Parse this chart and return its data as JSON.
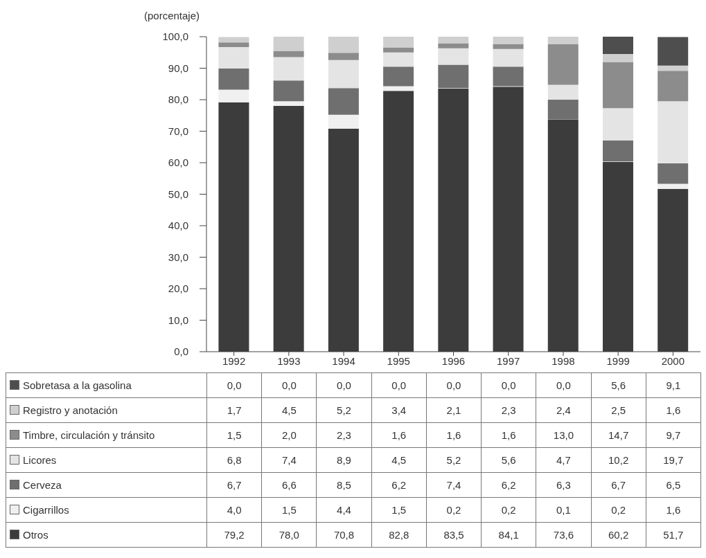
{
  "chart_data": {
    "type": "bar",
    "stacked": true,
    "ylabel": "(porcentaje)",
    "categories": [
      "1992",
      "1993",
      "1994",
      "1995",
      "1996",
      "1997",
      "1998",
      "1999",
      "2000"
    ],
    "ylim": [
      0,
      100
    ],
    "yticks": [
      {
        "value": 0,
        "label": "0,0"
      },
      {
        "value": 10,
        "label": "10,0"
      },
      {
        "value": 20,
        "label": "20,0"
      },
      {
        "value": 30,
        "label": "30,0"
      },
      {
        "value": 40,
        "label": "40,0"
      },
      {
        "value": 50,
        "label": "50,0"
      },
      {
        "value": 60,
        "label": "60,0"
      },
      {
        "value": 70,
        "label": "70,0"
      },
      {
        "value": 80,
        "label": "80,0"
      },
      {
        "value": 90,
        "label": "90,0"
      },
      {
        "value": 100,
        "label": "100,0"
      }
    ],
    "grid": false,
    "legend": "bottom",
    "series": [
      {
        "name": "Otros",
        "color": "#3c3c3c",
        "values": [
          79.2,
          78.0,
          70.8,
          82.8,
          83.5,
          84.1,
          73.6,
          60.2,
          51.7
        ],
        "value_labels": [
          "79,2",
          "78,0",
          "70,8",
          "82,8",
          "83,5",
          "84,1",
          "73,6",
          "60,2",
          "51,7"
        ]
      },
      {
        "name": "Cigarrillos",
        "color": "#f0f0f0",
        "values": [
          4.0,
          1.5,
          4.4,
          1.5,
          0.2,
          0.2,
          0.1,
          0.2,
          1.6
        ],
        "value_labels": [
          "4,0",
          "1,5",
          "4,4",
          "1,5",
          "0,2",
          "0,2",
          "0,1",
          "0,2",
          "1,6"
        ]
      },
      {
        "name": "Cerveza",
        "color": "#6f6f6f",
        "values": [
          6.7,
          6.6,
          8.5,
          6.2,
          7.4,
          6.2,
          6.3,
          6.7,
          6.5
        ],
        "value_labels": [
          "6,7",
          "6,6",
          "8,5",
          "6,2",
          "7,4",
          "6,2",
          "6,3",
          "6,7",
          "6,5"
        ]
      },
      {
        "name": "Licores",
        "color": "#e4e4e4",
        "values": [
          6.8,
          7.4,
          8.9,
          4.5,
          5.2,
          5.6,
          4.7,
          10.2,
          19.7
        ],
        "value_labels": [
          "6,8",
          "7,4",
          "8,9",
          "4,5",
          "5,2",
          "5,6",
          "4,7",
          "10,2",
          "19,7"
        ]
      },
      {
        "name": "Timbre, circulación y tránsito",
        "color": "#8c8c8c",
        "values": [
          1.5,
          2.0,
          2.3,
          1.6,
          1.6,
          1.6,
          13.0,
          14.7,
          9.7
        ],
        "value_labels": [
          "1,5",
          "2,0",
          "2,3",
          "1,6",
          "1,6",
          "1,6",
          "13,0",
          "14,7",
          "9,7"
        ]
      },
      {
        "name": "Registro y anotación",
        "color": "#cfcfcf",
        "values": [
          1.7,
          4.5,
          5.2,
          3.4,
          2.1,
          2.3,
          2.4,
          2.5,
          1.6
        ],
        "value_labels": [
          "1,7",
          "4,5",
          "5,2",
          "3,4",
          "2,1",
          "2,3",
          "2,4",
          "2,5",
          "1,6"
        ]
      },
      {
        "name": "Sobretasa a la gasolina",
        "color": "#4e4e4e",
        "values": [
          0.0,
          0.0,
          0.0,
          0.0,
          0.0,
          0.0,
          0.0,
          5.6,
          9.1
        ],
        "value_labels": [
          "0,0",
          "0,0",
          "0,0",
          "0,0",
          "0,0",
          "0,0",
          "0,0",
          "5,6",
          "9,1"
        ]
      }
    ]
  }
}
